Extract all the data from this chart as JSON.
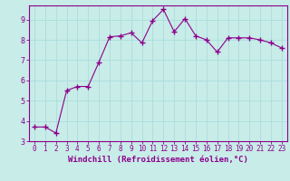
{
  "x": [
    0,
    1,
    2,
    3,
    4,
    5,
    6,
    7,
    8,
    9,
    10,
    11,
    12,
    13,
    14,
    15,
    16,
    17,
    18,
    19,
    20,
    21,
    22,
    23
  ],
  "y": [
    3.7,
    3.7,
    3.4,
    5.5,
    5.7,
    5.7,
    6.9,
    8.15,
    8.2,
    8.35,
    7.85,
    8.95,
    9.5,
    8.4,
    9.05,
    8.2,
    8.0,
    7.4,
    8.1,
    8.1,
    8.1,
    8.0,
    7.85,
    7.6
  ],
  "line_color": "#8b008b",
  "marker": "+",
  "bg_color": "#c8ece8",
  "grid_color": "#aadddd",
  "xlabel": "Windchill (Refroidissement éolien,°C)",
  "xlabel_color": "#8b008b",
  "tick_color": "#8b008b",
  "spine_color": "#8b008b",
  "ylim": [
    3,
    9.7
  ],
  "xlim": [
    -0.5,
    23.5
  ],
  "yticks": [
    3,
    4,
    5,
    6,
    7,
    8,
    9
  ],
  "xticks": [
    0,
    1,
    2,
    3,
    4,
    5,
    6,
    7,
    8,
    9,
    10,
    11,
    12,
    13,
    14,
    15,
    16,
    17,
    18,
    19,
    20,
    21,
    22,
    23
  ],
  "tick_fontsize": 6,
  "xlabel_fontsize": 6.5,
  "linewidth": 0.8,
  "markersize": 4
}
